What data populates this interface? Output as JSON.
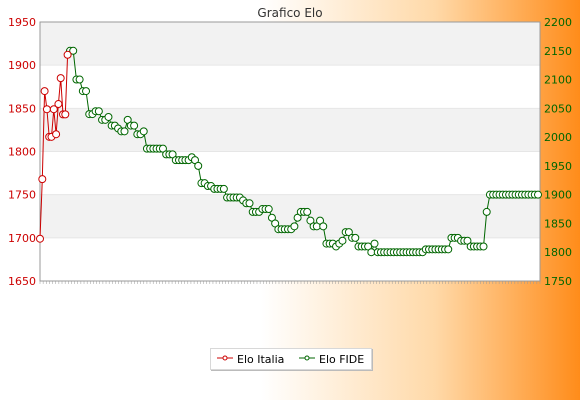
{
  "chart_data": {
    "type": "line",
    "title": "Grafico Elo",
    "colors": {
      "italia": "#cc0000",
      "fide": "#006600"
    },
    "y_left": {
      "min": 1650,
      "max": 1950,
      "ticks": [
        1650,
        1700,
        1750,
        1800,
        1850,
        1900,
        1950
      ]
    },
    "y_right": {
      "min": 1750,
      "max": 2200,
      "ticks": [
        1750,
        1800,
        1850,
        1900,
        1950,
        2000,
        2050,
        2100,
        2150,
        2200
      ]
    },
    "legend": {
      "italia": "Elo Italia",
      "fide": "Elo FIDE"
    },
    "grid": "alternating horizontal bands",
    "series": [
      {
        "name": "Elo Italia",
        "axis": "left",
        "values": [
          1699,
          1768,
          1870,
          1849,
          1817,
          1817,
          1849,
          1820,
          1855,
          1885,
          1843,
          1843,
          1912
        ]
      },
      {
        "name": "Elo FIDE",
        "axis": "right",
        "values": [
          2150,
          2150,
          2100,
          2100,
          2080,
          2080,
          2040,
          2040,
          2045,
          2045,
          2030,
          2030,
          2035,
          2020,
          2020,
          2015,
          2010,
          2010,
          2030,
          2020,
          2020,
          2005,
          2005,
          2010,
          1980,
          1980,
          1980,
          1980,
          1980,
          1980,
          1970,
          1970,
          1970,
          1960,
          1960,
          1960,
          1960,
          1960,
          1965,
          1960,
          1950,
          1920,
          1920,
          1915,
          1915,
          1910,
          1910,
          1910,
          1910,
          1895,
          1895,
          1895,
          1895,
          1895,
          1890,
          1885,
          1885,
          1870,
          1870,
          1870,
          1875,
          1875,
          1875,
          1860,
          1850,
          1840,
          1840,
          1840,
          1840,
          1840,
          1845,
          1860,
          1870,
          1870,
          1870,
          1855,
          1845,
          1845,
          1855,
          1845,
          1815,
          1815,
          1815,
          1810,
          1815,
          1820,
          1835,
          1835,
          1825,
          1825,
          1810,
          1810,
          1810,
          1810,
          1800,
          1815,
          1800,
          1800,
          1800,
          1800,
          1800,
          1800,
          1800,
          1800,
          1800,
          1800,
          1800,
          1800,
          1800,
          1800,
          1800,
          1805,
          1805,
          1805,
          1805,
          1805,
          1805,
          1805,
          1805,
          1825,
          1825,
          1825,
          1820,
          1820,
          1820,
          1810,
          1810,
          1810,
          1810,
          1810,
          1870,
          1900,
          1900,
          1900,
          1900,
          1900,
          1900,
          1900,
          1900,
          1900,
          1900,
          1900,
          1900,
          1900,
          1900,
          1900,
          1900
        ]
      }
    ]
  }
}
